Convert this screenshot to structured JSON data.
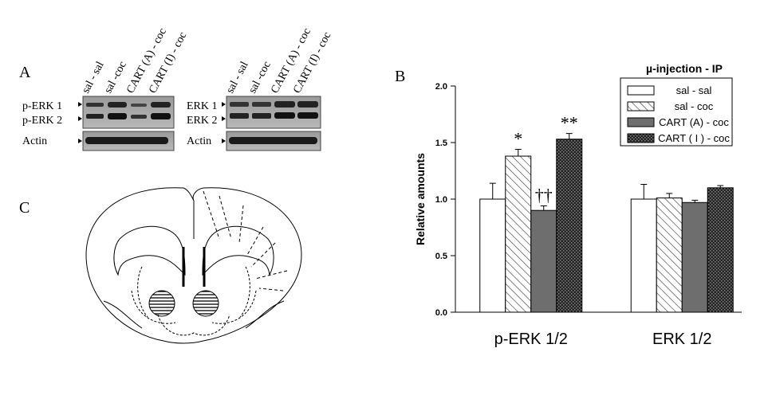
{
  "panel_labels": [
    "A",
    "B",
    "C"
  ],
  "blot": {
    "left": {
      "lanes": [
        "sal - sal",
        "sal -coc",
        "CART (A) - coc",
        "CART (I) - coc"
      ],
      "rows": [
        "p-ERK 1",
        "p-ERK 2",
        "Actin"
      ]
    },
    "right": {
      "lanes": [
        "sal - sal",
        "sal -coc",
        "CART (A) - coc",
        "CART (I) - coc"
      ],
      "rows": [
        "ERK 1",
        "ERK 2",
        "Actin"
      ]
    }
  },
  "chart_data": {
    "type": "bar",
    "legend_title": "µ-injection - IP",
    "y_label": "Relative amounts",
    "categories": [
      "p-ERK 1/2",
      "ERK 1/2"
    ],
    "series": [
      {
        "name": "sal - sal",
        "color": "#ffffff",
        "hatch": null,
        "values": [
          1.0,
          1.0
        ],
        "errors": [
          0.14,
          0.13
        ],
        "markers": [
          null,
          null
        ]
      },
      {
        "name": "sal - coc",
        "color": "#ffffff",
        "hatch": "diagonal",
        "values": [
          1.38,
          1.01
        ],
        "errors": [
          0.06,
          0.04
        ],
        "markers": [
          "*",
          null
        ]
      },
      {
        "name": "CART (A) - coc",
        "color": "#6e6e6e",
        "hatch": null,
        "values": [
          0.9,
          0.97
        ],
        "errors": [
          0.04,
          0.02
        ],
        "markers": [
          "††",
          null
        ]
      },
      {
        "name": "CART ( I ) - coc",
        "color": "#2a2a2a",
        "hatch": "cross",
        "values": [
          1.53,
          1.1
        ],
        "errors": [
          0.05,
          0.02
        ],
        "markers": [
          "**",
          null
        ]
      }
    ],
    "ylim": [
      0,
      2.0
    ],
    "yticks": [
      {
        "value": 0,
        "label": "0.0"
      },
      {
        "value": 0.5,
        "label": "0.5"
      },
      {
        "value": 1.0,
        "label": "1.0"
      },
      {
        "value": 1.5,
        "label": "1.5"
      },
      {
        "value": 2.0,
        "label": "2.0"
      }
    ]
  }
}
